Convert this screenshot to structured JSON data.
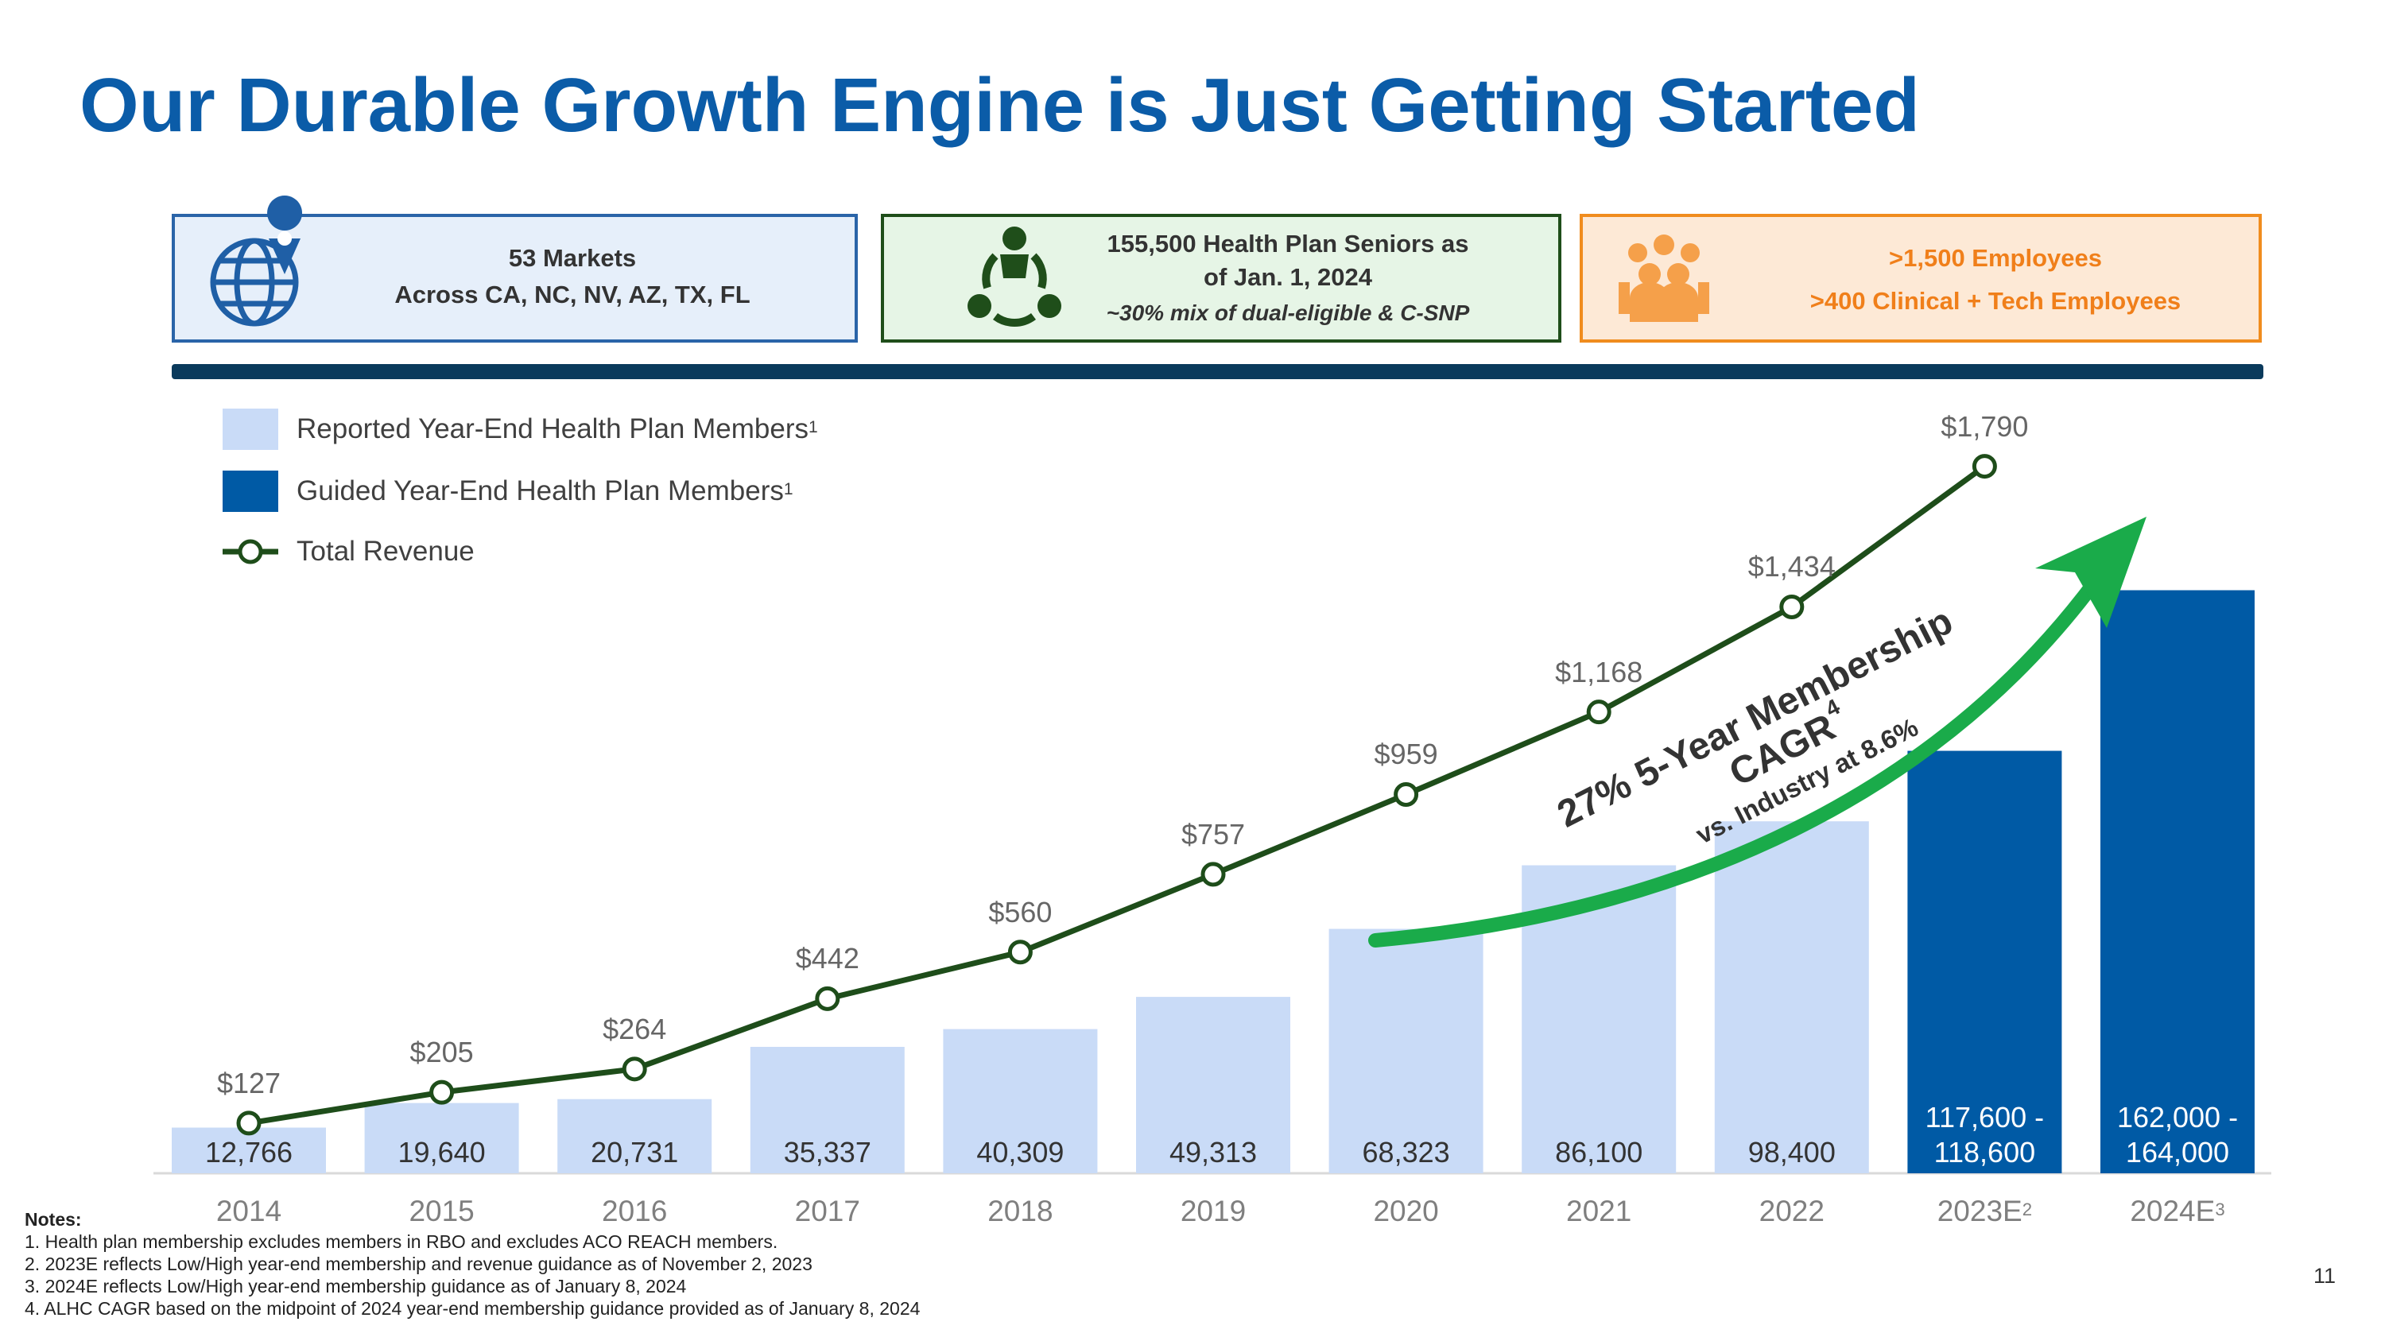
{
  "header": {
    "title": "Our Durable Growth Engine is Just Getting Started"
  },
  "info_boxes": [
    {
      "lines": [
        "53 Markets",
        "Across CA, NC, NV, AZ, TX, FL"
      ]
    },
    {
      "lines": [
        "155,500 Health Plan Seniors as",
        "of Jan. 1, 2024"
      ],
      "note": "~30% mix of dual-eligible & C-SNP"
    },
    {
      "lines": [
        ">1,500 Employees",
        ">400 Clinical + Tech Employees"
      ]
    }
  ],
  "chart_data": {
    "type": "combo",
    "categories": [
      "2014",
      "2015",
      "2016",
      "2017",
      "2018",
      "2019",
      "2020",
      "2021",
      "2022",
      "2023E",
      "2024E"
    ],
    "category_footnotes": [
      null,
      null,
      null,
      null,
      null,
      null,
      null,
      null,
      null,
      "2",
      "3"
    ],
    "ylim": [
      0,
      212000
    ],
    "y2lim": [
      0,
      1920
    ],
    "series": [
      {
        "name": "Reported Year-End Health Plan Members",
        "footnote": "1",
        "type": "bar",
        "color": "#c9dbf7",
        "values": [
          12766,
          19640,
          20731,
          35337,
          40309,
          49313,
          68323,
          86100,
          98400,
          null,
          null
        ],
        "value_labels": [
          "12,766",
          "19,640",
          "20,731",
          "35,337",
          "40,309",
          "49,313",
          "68,323",
          "86,100",
          "98,400",
          null,
          null
        ]
      },
      {
        "name": "Guided Year-End Health Plan Members",
        "footnote": "1",
        "type": "bar",
        "color": "#005aa5",
        "values": [
          null,
          null,
          null,
          null,
          null,
          null,
          null,
          null,
          null,
          118100,
          163000
        ],
        "value_labels": [
          null,
          null,
          null,
          null,
          null,
          null,
          null,
          null,
          null,
          "117,600 - 118,600",
          "162,000 - 164,000"
        ]
      },
      {
        "name": "Total Revenue",
        "type": "line",
        "axis": "y2",
        "color": "#1e4d1a",
        "values": [
          127,
          205,
          264,
          442,
          560,
          757,
          959,
          1168,
          1434,
          1790,
          null
        ],
        "value_labels": [
          "$127",
          "$205",
          "$264",
          "$442",
          "$560",
          "$757",
          "$959",
          "$1,168",
          "$1,434",
          "$1,790",
          null
        ]
      }
    ],
    "annotation": {
      "lines": [
        "27% 5-Year Membership",
        "CAGR"
      ],
      "footnote": "4",
      "comparison": "vs. Industry at 8.6%"
    }
  },
  "notes": {
    "title": "Notes:",
    "items": [
      "1. Health plan membership excludes members in RBO and excludes ACO REACH members.",
      "2. 2023E reflects Low/High year-end membership and revenue guidance as of November 2, 2023",
      "3. 2024E reflects Low/High year-end membership guidance as of January 8, 2024",
      "4. ALHC CAGR based on the midpoint of 2024 year-end membership guidance provided as of January 8, 2024"
    ]
  },
  "page_number": "11"
}
